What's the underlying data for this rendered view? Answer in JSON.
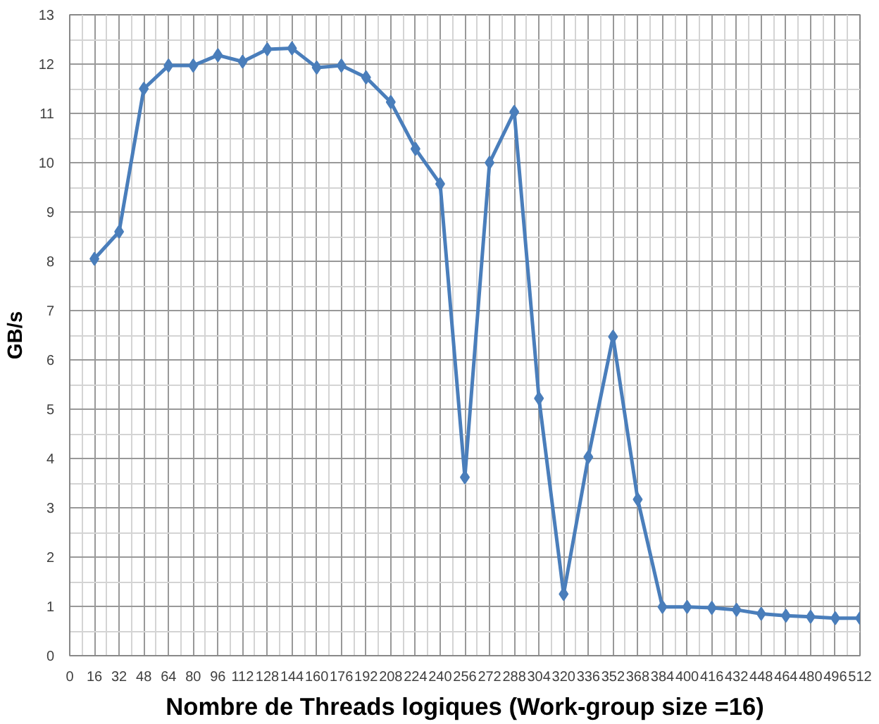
{
  "chart_data": {
    "type": "line",
    "xlabel": "Nombre de Threads logiques (Work-group size =16)",
    "ylabel": "GB/s",
    "x": [
      16,
      32,
      48,
      64,
      80,
      96,
      112,
      128,
      144,
      160,
      176,
      192,
      208,
      224,
      240,
      256,
      272,
      288,
      304,
      320,
      336,
      352,
      368,
      384,
      400,
      416,
      432,
      448,
      464,
      480,
      496,
      512
    ],
    "series": [
      {
        "color": "#4a7ebb",
        "values": [
          8.05,
          8.6,
          11.5,
          11.97,
          11.97,
          12.18,
          12.05,
          12.3,
          12.32,
          11.93,
          11.97,
          11.73,
          11.23,
          10.28,
          9.57,
          3.62,
          10.0,
          11.03,
          5.22,
          1.25,
          4.03,
          6.47,
          3.17,
          0.99,
          0.99,
          0.97,
          0.93,
          0.85,
          0.81,
          0.79,
          0.76,
          0.76
        ]
      }
    ],
    "xlim": [
      0,
      512
    ],
    "xticks": [
      0,
      16,
      32,
      48,
      64,
      80,
      96,
      112,
      128,
      144,
      160,
      176,
      192,
      208,
      224,
      240,
      256,
      272,
      288,
      304,
      320,
      336,
      352,
      368,
      384,
      400,
      416,
      432,
      448,
      464,
      480,
      496,
      512
    ],
    "ylim": [
      0,
      13
    ],
    "yticks": [
      0,
      1,
      2,
      3,
      4,
      5,
      6,
      7,
      8,
      9,
      10,
      11,
      12,
      13
    ],
    "grid": true,
    "marker": "diamond",
    "line_style": "solid"
  }
}
